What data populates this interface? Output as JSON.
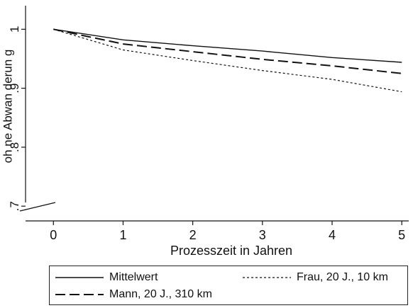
{
  "chart_data": {
    "type": "line",
    "xlabel": "Prozesszeit in Jahren",
    "ylabel": "oh ne Abwan derun g",
    "x_ticks": [
      0,
      1,
      2,
      3,
      4,
      5
    ],
    "x_tick_labels": [
      "0",
      "1",
      "2",
      "3",
      "4",
      "5"
    ],
    "y_ticks": [
      0.7,
      0.8,
      0.9,
      1.0
    ],
    "y_tick_labels": [
      ".7",
      ".8",
      ".9",
      "1"
    ],
    "xlim": [
      -0.4,
      5.1
    ],
    "ylim": [
      0.675,
      1.04
    ],
    "axis_break": "y-bottom",
    "grid": false,
    "legend_position": "bottom",
    "series": [
      {
        "name": "Mittelwert",
        "style": "solid",
        "x": [
          0,
          1,
          2,
          3,
          4,
          5
        ],
        "y": [
          1.0,
          0.982,
          0.972,
          0.963,
          0.952,
          0.944
        ]
      },
      {
        "name": "Frau, 20 J., 10 km",
        "style": "dotted",
        "x": [
          0,
          1,
          2,
          3,
          4,
          5
        ],
        "y": [
          1.0,
          0.965,
          0.947,
          0.93,
          0.915,
          0.894
        ]
      },
      {
        "name": "Mann, 20 J., 310 km",
        "style": "dashed",
        "x": [
          0,
          1,
          2,
          3,
          4,
          5
        ],
        "y": [
          1.0,
          0.975,
          0.962,
          0.949,
          0.938,
          0.925
        ]
      }
    ]
  },
  "colors": {
    "line": "#111111",
    "background": "#ffffff"
  }
}
